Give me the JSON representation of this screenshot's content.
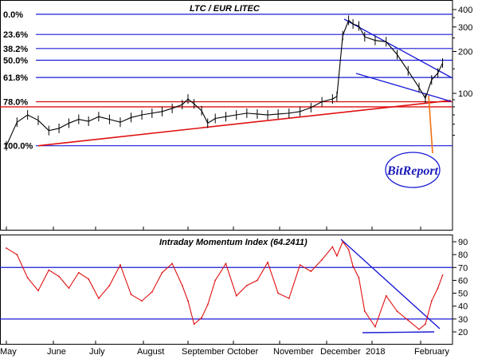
{
  "chart_data": [
    {
      "type": "line",
      "title": "LTC / EUR LITEC",
      "y_scale": "log",
      "y_ticks": [
        100,
        200,
        300,
        400
      ],
      "ylim": [
        35,
        430
      ],
      "x_ticks": [
        "May",
        "June",
        "July",
        "August",
        "September",
        "October",
        "November",
        "December",
        "2018",
        "February"
      ],
      "fib_levels": [
        {
          "label": "0.0%",
          "value": 370
        },
        {
          "label": "23.6%",
          "value": 265
        },
        {
          "label": "38.2%",
          "value": 210
        },
        {
          "label": "50.0%",
          "value": 173
        },
        {
          "label": "61.8%",
          "value": 130
        },
        {
          "label": "78.0%",
          "value": 87
        },
        {
          "label": "100.0%",
          "value": 42
        }
      ],
      "support_value": 80,
      "series": [
        {
          "name": "LTC/EUR",
          "points": [
            [
              "May 1",
              42
            ],
            [
              "May 8",
              62
            ],
            [
              "May 15",
              70
            ],
            [
              "May 22",
              64
            ],
            [
              "May 29",
              54
            ],
            [
              "Jun 5",
              56
            ],
            [
              "Jun 12",
              61
            ],
            [
              "Jun 19",
              65
            ],
            [
              "Jun 26",
              63
            ],
            [
              "Jul 3",
              68
            ],
            [
              "Jul 10",
              65
            ],
            [
              "Jul 17",
              62
            ],
            [
              "Jul 24",
              67
            ],
            [
              "Jul 31",
              70
            ],
            [
              "Aug 7",
              72
            ],
            [
              "Aug 14",
              74
            ],
            [
              "Aug 21",
              78
            ],
            [
              "Aug 28",
              83
            ],
            [
              "Sep 1",
              91
            ],
            [
              "Sep 5",
              84
            ],
            [
              "Sep 10",
              75
            ],
            [
              "Sep 14",
              61
            ],
            [
              "Sep 19",
              66
            ],
            [
              "Sep 26",
              68
            ],
            [
              "Oct 3",
              70
            ],
            [
              "Oct 10",
              72
            ],
            [
              "Oct 17",
              71
            ],
            [
              "Oct 24",
              70
            ],
            [
              "Oct 31",
              71
            ],
            [
              "Nov 7",
              72
            ],
            [
              "Nov 14",
              74
            ],
            [
              "Nov 21",
              79
            ],
            [
              "Nov 28",
              87
            ],
            [
              "Dec 5",
              91
            ],
            [
              "Dec 8",
              95
            ],
            [
              "Dec 12",
              260
            ],
            [
              "Dec 16",
              335
            ],
            [
              "Dec 19",
              315
            ],
            [
              "Dec 23",
              305
            ],
            [
              "Dec 27",
              255
            ],
            [
              "Jan 3",
              240
            ],
            [
              "Jan 10",
              235
            ],
            [
              "Jan 17",
              190
            ],
            [
              "Jan 24",
              145
            ],
            [
              "Jan 31",
              110
            ],
            [
              "Feb 4",
              92
            ],
            [
              "Feb 8",
              125
            ],
            [
              "Feb 12",
              140
            ],
            [
              "Feb 15",
              165
            ]
          ]
        }
      ]
    },
    {
      "type": "line",
      "title": "Intraday Momentum Index (64.2411)",
      "y_ticks": [
        20,
        30,
        40,
        50,
        60,
        70,
        80,
        90
      ],
      "ylim": [
        15,
        95
      ],
      "ref_levels": [
        70,
        30
      ],
      "series": [
        {
          "name": "IMI",
          "points": [
            [
              "May 1",
              85
            ],
            [
              "May 8",
              80
            ],
            [
              "May 15",
              62
            ],
            [
              "May 22",
              52
            ],
            [
              "May 29",
              68
            ],
            [
              "Jun 5",
              63
            ],
            [
              "Jun 12",
              54
            ],
            [
              "Jun 19",
              66
            ],
            [
              "Jun 26",
              61
            ],
            [
              "Jul 3",
              46
            ],
            [
              "Jul 10",
              56
            ],
            [
              "Jul 17",
              72
            ],
            [
              "Jul 24",
              49
            ],
            [
              "Jul 31",
              44
            ],
            [
              "Aug 7",
              51
            ],
            [
              "Aug 14",
              66
            ],
            [
              "Aug 21",
              73
            ],
            [
              "Aug 28",
              56
            ],
            [
              "Sep 1",
              44
            ],
            [
              "Sep 5",
              26
            ],
            [
              "Sep 10",
              31
            ],
            [
              "Sep 14",
              41
            ],
            [
              "Sep 19",
              60
            ],
            [
              "Sep 26",
              73
            ],
            [
              "Oct 3",
              48
            ],
            [
              "Oct 10",
              56
            ],
            [
              "Oct 17",
              60
            ],
            [
              "Oct 24",
              74
            ],
            [
              "Oct 31",
              50
            ],
            [
              "Nov 7",
              46
            ],
            [
              "Nov 14",
              72
            ],
            [
              "Nov 21",
              67
            ],
            [
              "Nov 28",
              76
            ],
            [
              "Dec 5",
              86
            ],
            [
              "Dec 8",
              79
            ],
            [
              "Dec 12",
              90
            ],
            [
              "Dec 16",
              84
            ],
            [
              "Dec 19",
              71
            ],
            [
              "Dec 23",
              62
            ],
            [
              "Dec 27",
              36
            ],
            [
              "Jan 3",
              24
            ],
            [
              "Jan 10",
              48
            ],
            [
              "Jan 17",
              36
            ],
            [
              "Jan 24",
              29
            ],
            [
              "Jan 31",
              22
            ],
            [
              "Feb 4",
              26
            ],
            [
              "Feb 8",
              44
            ],
            [
              "Feb 12",
              54
            ],
            [
              "Feb 15",
              64
            ]
          ]
        }
      ]
    }
  ],
  "watermark": "BitReport"
}
